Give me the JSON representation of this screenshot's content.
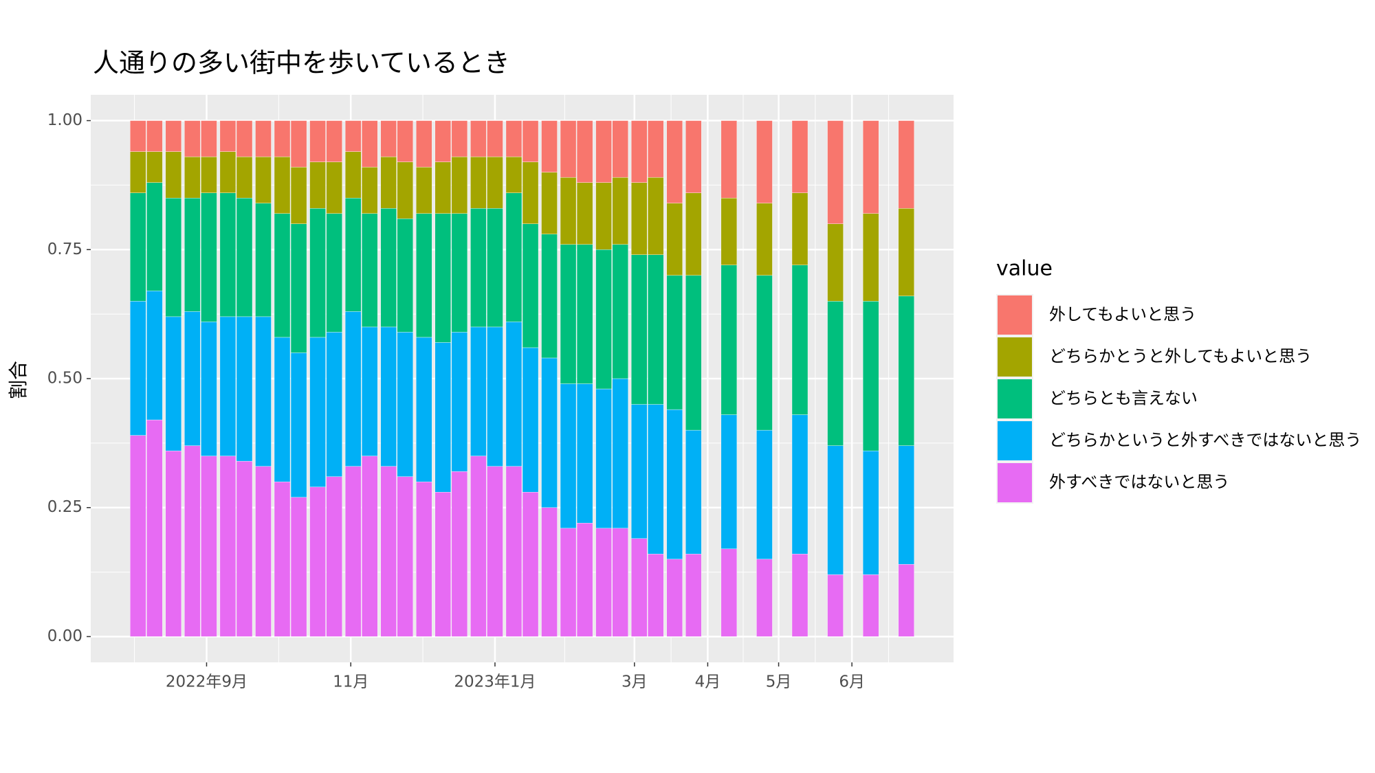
{
  "chart_data": {
    "type": "bar",
    "stacked": true,
    "title": "人通りの多い街中を歩いているとき",
    "y_label": "割合",
    "legend_title": "value",
    "legend_position": "right",
    "grid": true,
    "x": [
      -29,
      -22,
      -14,
      -6,
      1,
      9,
      16,
      24,
      32,
      39,
      47,
      54,
      62,
      69,
      77,
      84,
      92,
      100,
      107,
      115,
      122,
      130,
      137,
      145,
      153,
      160,
      168,
      175,
      183,
      190,
      198,
      206,
      221,
      236,
      251,
      266,
      281,
      296
    ],
    "xlim": [
      -49,
      316
    ],
    "xticks": [
      {
        "value": 0,
        "label": "2022年9月"
      },
      {
        "value": 61,
        "label": "11月"
      },
      {
        "value": 122,
        "label": "2023年1月"
      },
      {
        "value": 181,
        "label": "3月"
      },
      {
        "value": 212,
        "label": "4月"
      },
      {
        "value": 242,
        "label": "5月"
      },
      {
        "value": 273,
        "label": "6月"
      }
    ],
    "ylim": [
      -0.05,
      1.05
    ],
    "yticks": [
      {
        "value": 0,
        "label": "0.00"
      },
      {
        "value": 0.25,
        "label": "0.25"
      },
      {
        "value": 0.5,
        "label": "0.50"
      },
      {
        "value": 0.75,
        "label": "0.75"
      },
      {
        "value": 1,
        "label": "1.00"
      }
    ],
    "series": [
      {
        "name": "外すべきではないと思う",
        "color": "#E76BF3",
        "values": [
          0.39,
          0.42,
          0.36,
          0.37,
          0.35,
          0.35,
          0.34,
          0.33,
          0.3,
          0.27,
          0.29,
          0.31,
          0.33,
          0.35,
          0.33,
          0.31,
          0.3,
          0.28,
          0.32,
          0.35,
          0.33,
          0.33,
          0.28,
          0.25,
          0.21,
          0.22,
          0.21,
          0.21,
          0.19,
          0.16,
          0.15,
          0.16,
          0.17,
          0.15,
          0.16,
          0.12,
          0.12,
          0.14
        ]
      },
      {
        "name": "どちらかというと外すべきではないと思う",
        "color": "#00B0F6",
        "values": [
          0.26,
          0.25,
          0.26,
          0.26,
          0.26,
          0.27,
          0.28,
          0.29,
          0.28,
          0.28,
          0.29,
          0.28,
          0.3,
          0.25,
          0.27,
          0.28,
          0.28,
          0.29,
          0.27,
          0.25,
          0.27,
          0.28,
          0.28,
          0.29,
          0.28,
          0.27,
          0.27,
          0.29,
          0.26,
          0.29,
          0.29,
          0.24,
          0.26,
          0.25,
          0.27,
          0.25,
          0.24,
          0.23
        ]
      },
      {
        "name": "どちらとも言えない",
        "color": "#00BF7D",
        "values": [
          0.21,
          0.21,
          0.23,
          0.22,
          0.25,
          0.24,
          0.23,
          0.22,
          0.24,
          0.25,
          0.25,
          0.23,
          0.22,
          0.22,
          0.23,
          0.22,
          0.24,
          0.25,
          0.23,
          0.23,
          0.23,
          0.25,
          0.24,
          0.24,
          0.27,
          0.27,
          0.27,
          0.26,
          0.29,
          0.29,
          0.26,
          0.3,
          0.29,
          0.3,
          0.29,
          0.28,
          0.29,
          0.29
        ]
      },
      {
        "name": "どちらかとうと外してもよいと思う",
        "color": "#A3A500",
        "values": [
          0.08,
          0.06,
          0.09,
          0.08,
          0.07,
          0.08,
          0.08,
          0.09,
          0.11,
          0.11,
          0.09,
          0.1,
          0.09,
          0.09,
          0.1,
          0.11,
          0.09,
          0.1,
          0.11,
          0.1,
          0.1,
          0.07,
          0.12,
          0.12,
          0.13,
          0.12,
          0.13,
          0.13,
          0.14,
          0.15,
          0.14,
          0.16,
          0.13,
          0.14,
          0.14,
          0.15,
          0.17,
          0.17
        ]
      },
      {
        "name": "外してもよいと思う",
        "color": "#F8766D",
        "values": [
          0.06,
          0.06,
          0.06,
          0.07,
          0.07,
          0.06,
          0.07,
          0.07,
          0.07,
          0.09,
          0.08,
          0.08,
          0.06,
          0.09,
          0.07,
          0.08,
          0.09,
          0.08,
          0.07,
          0.07,
          0.07,
          0.07,
          0.08,
          0.1,
          0.11,
          0.12,
          0.12,
          0.11,
          0.12,
          0.11,
          0.16,
          0.14,
          0.15,
          0.16,
          0.14,
          0.2,
          0.18,
          0.17
        ]
      }
    ]
  }
}
